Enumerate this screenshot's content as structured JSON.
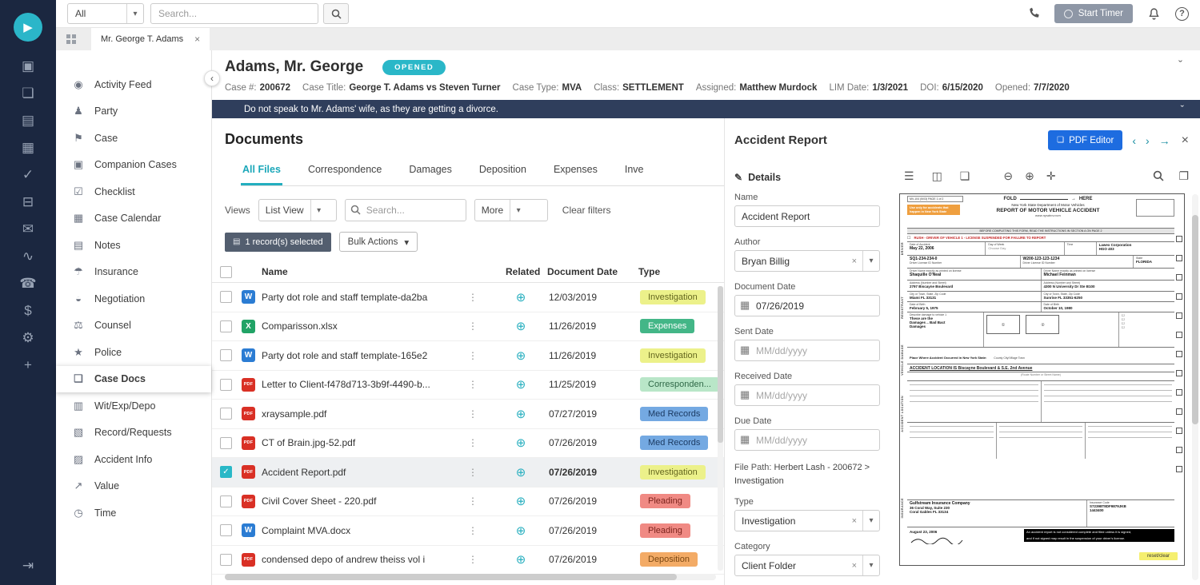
{
  "colors": {
    "accent_teal": "#2ab7c8",
    "accent_blue": "#1d6ce0",
    "rail_bg": "#1b2740",
    "alert_bg": "#2f3e5c"
  },
  "glyphs": {
    "logo": "▶",
    "caret": "▾",
    "kebab": "⋮",
    "related": "⊕",
    "check": "✓",
    "close": "×",
    "chevron_left": "‹",
    "chevron_right": "›",
    "chevron_down": "ˇ",
    "arrow_right": "→",
    "pencil": "✎",
    "doc": "❏",
    "calendar": "▦",
    "question": "?",
    "doc_small": "▤",
    "checkbox": "☐",
    "circle1": "①",
    "circle2": "②"
  },
  "file_icon_letters": {
    "word": "W",
    "excel": "X",
    "pdf": "PDF"
  },
  "topbar": {
    "scope_select": "All",
    "search_placeholder": "Search...",
    "start_timer_label": "Start Timer"
  },
  "tabstrip": {
    "case_tab_label": "Mr. George T. Adams"
  },
  "rail": {
    "icons": [
      {
        "name": "briefcase",
        "glyph": "▣"
      },
      {
        "name": "folder",
        "glyph": "❏"
      },
      {
        "name": "contact-card",
        "glyph": "▤"
      },
      {
        "name": "calendar",
        "glyph": "▦"
      },
      {
        "name": "check-circle",
        "glyph": "✓"
      },
      {
        "name": "inbox",
        "glyph": "⊟"
      },
      {
        "name": "chat",
        "glyph": "✉"
      },
      {
        "name": "activity",
        "glyph": "∿"
      },
      {
        "name": "phone-call",
        "glyph": "☎"
      },
      {
        "name": "dollar",
        "glyph": "$"
      },
      {
        "name": "settings",
        "glyph": "⚙"
      },
      {
        "name": "add",
        "glyph": "+"
      }
    ],
    "logout_glyph": "⇥"
  },
  "sidebar": {
    "items": [
      {
        "label": "Activity Feed",
        "icon": "activity-feed-icon",
        "glyph": "◉",
        "selected": false
      },
      {
        "label": "Party",
        "icon": "party-icon",
        "glyph": "♟",
        "selected": false
      },
      {
        "label": "Case",
        "icon": "case-icon",
        "glyph": "⚑",
        "selected": false
      },
      {
        "label": "Companion Cases",
        "icon": "companion-cases-icon",
        "glyph": "▣",
        "selected": false
      },
      {
        "label": "Checklist",
        "icon": "checklist-icon",
        "glyph": "☑",
        "selected": false
      },
      {
        "label": "Case Calendar",
        "icon": "case-calendar-icon",
        "glyph": "▦",
        "selected": false
      },
      {
        "label": "Notes",
        "icon": "notes-icon",
        "glyph": "▤",
        "selected": false
      },
      {
        "label": "Insurance",
        "icon": "insurance-icon",
        "glyph": "☂",
        "selected": false
      },
      {
        "label": "Negotiation",
        "icon": "negotiation-icon",
        "glyph": "◒",
        "selected": false
      },
      {
        "label": "Counsel",
        "icon": "counsel-icon",
        "glyph": "⚖",
        "selected": false
      },
      {
        "label": "Police",
        "icon": "police-icon",
        "glyph": "★",
        "selected": false
      },
      {
        "label": "Case Docs",
        "icon": "case-docs-icon",
        "glyph": "❏",
        "selected": true
      },
      {
        "label": "Wit/Exp/Depo",
        "icon": "wit-exp-depo-icon",
        "glyph": "▥",
        "selected": false
      },
      {
        "label": "Record/Requests",
        "icon": "record-requests-icon",
        "glyph": "▧",
        "selected": false
      },
      {
        "label": "Accident Info",
        "icon": "accident-info-icon",
        "glyph": "▨",
        "selected": false
      },
      {
        "label": "Value",
        "icon": "value-icon",
        "glyph": "↗",
        "selected": false
      },
      {
        "label": "Time",
        "icon": "time-icon",
        "glyph": "◷",
        "selected": false
      }
    ]
  },
  "case_header": {
    "title": "Adams, Mr. George",
    "status": "OPENED",
    "meta": [
      {
        "label": "Case #:",
        "value": "200672"
      },
      {
        "label": "Case Title:",
        "value": "George T. Adams vs Steven Turner"
      },
      {
        "label": "Case Type:",
        "value": "MVA"
      },
      {
        "label": "Class:",
        "value": "SETTLEMENT"
      },
      {
        "label": "Assigned:",
        "value": "Matthew Murdock"
      },
      {
        "label": "LIM Date:",
        "value": "1/3/2021"
      },
      {
        "label": "DOI:",
        "value": "6/15/2020"
      },
      {
        "label": "Opened:",
        "value": "7/7/2020"
      }
    ],
    "alert_text": "Do not speak to Mr. Adams' wife, as they are getting a divorce."
  },
  "documents": {
    "title": "Documents",
    "tabs": [
      {
        "label": "All Files",
        "active": true
      },
      {
        "label": "Correspondence",
        "active": false
      },
      {
        "label": "Damages",
        "active": false
      },
      {
        "label": "Deposition",
        "active": false
      },
      {
        "label": "Expenses",
        "active": false
      },
      {
        "label": "Inve",
        "active": false
      }
    ],
    "views_label": "Views",
    "view_value": "List View",
    "search_placeholder": "Search...",
    "more_label": "More",
    "clear_filters_label": "Clear filters",
    "selected_summary": "1 record(s) selected",
    "bulk_actions_label": "Bulk Actions",
    "columns": {
      "name": "Name",
      "related": "Related",
      "date": "Document Date",
      "type": "Type"
    },
    "rows": [
      {
        "icon": "word",
        "name": "Party dot role and staff template-da2ba",
        "date": "12/03/2019",
        "type": "Investigation",
        "type_key": "investigation",
        "selected": false
      },
      {
        "icon": "excel",
        "name": "Comparisson.xlsx",
        "date": "11/26/2019",
        "type": "Expenses",
        "type_key": "expenses",
        "selected": false
      },
      {
        "icon": "word",
        "name": "Party dot role and staff template-165e2",
        "date": "11/26/2019",
        "type": "Investigation",
        "type_key": "investigation",
        "selected": false
      },
      {
        "icon": "pdf",
        "name": "Letter to Client-f478d713-3b9f-4490-b...",
        "date": "11/25/2019",
        "type": "Corresponden...",
        "type_key": "correspondence",
        "selected": false
      },
      {
        "icon": "pdf",
        "name": "xraysample.pdf",
        "date": "07/27/2019",
        "type": "Med Records",
        "type_key": "med-records",
        "selected": false
      },
      {
        "icon": "pdf",
        "name": "CT of Brain.jpg-52.pdf",
        "date": "07/26/2019",
        "type": "Med Records",
        "type_key": "med-records",
        "selected": false
      },
      {
        "icon": "pdf",
        "name": "Accident Report.pdf",
        "date": "07/26/2019",
        "type": "Investigation",
        "type_key": "investigation",
        "selected": true
      },
      {
        "icon": "pdf",
        "name": "Civil Cover Sheet - 220.pdf",
        "date": "07/26/2019",
        "type": "Pleading",
        "type_key": "pleading",
        "selected": false
      },
      {
        "icon": "word",
        "name": "Complaint MVA.docx",
        "date": "07/26/2019",
        "type": "Pleading",
        "type_key": "pleading",
        "selected": false
      },
      {
        "icon": "pdf",
        "name": "condensed depo of andrew theiss vol i",
        "date": "07/26/2019",
        "type": "Deposition",
        "type_key": "deposition",
        "selected": false
      }
    ]
  },
  "badge_colors": {
    "investigation": {
      "bg": "#ecf18a",
      "fg": "#65671f"
    },
    "expenses": {
      "bg": "#43b687",
      "fg": "#ffffff"
    },
    "correspondence": {
      "bg": "#b9e6c8",
      "fg": "#2f6847"
    },
    "med-records": {
      "bg": "#74a9e2",
      "fg": "#1c3b63"
    },
    "pleading": {
      "bg": "#f08a84",
      "fg": "#7c241d"
    },
    "deposition": {
      "bg": "#f3ab66",
      "fg": "#7a4712"
    }
  },
  "detail_panel": {
    "title": "Accident Report",
    "pdf_editor_label": "PDF Editor",
    "details_header": "Details",
    "name_label": "Name",
    "name_value": "Accident Report",
    "author_label": "Author",
    "author_value": "Bryan Billig",
    "document_date_label": "Document Date",
    "document_date_value": "07/26/2019",
    "sent_date_label": "Sent Date",
    "sent_date_placeholder": "MM/dd/yyyy",
    "received_date_label": "Received Date",
    "received_date_placeholder": "MM/dd/yyyy",
    "due_date_label": "Due Date",
    "due_date_placeholder": "MM/dd/yyyy",
    "file_path_label": "File Path:",
    "file_path_value": "Herbert Lash - 200672 > Investigation",
    "type_label": "Type",
    "type_value": "Investigation",
    "category_label": "Category",
    "category_value": "Client Folder"
  },
  "pdf_viewer": {
    "tb": {
      "menu": "☰",
      "thumbs": "◫",
      "doc": "❏",
      "zoom_out": "⊖",
      "zoom_in": "⊕",
      "pan": "✛",
      "pages": "❐"
    }
  },
  "pdf_form": {
    "page_label": "MV-104 (5/03)  PAGE 1 of 2",
    "fold_label": "FOLD",
    "here_label": "HERE",
    "dept": "New York State Department of Motor Vehicles",
    "title": "REPORT OF MOTOR VEHICLE ACCIDENT",
    "website": "www.nysdmv.com",
    "notice": "Use only for accidents that happen in New York State",
    "instructions": "BEFORE COMPLETING THIS FORM, READ THE INSTRUCTIONS IN SECTION A ON PAGE 2",
    "rush_line": "RUSH - DRIVER OF VEHICLE 1 - LICENSE SUSPENDED FOR FAILURE TO REPORT",
    "date_of_accident_label": "Date of Accident",
    "accident_date": "May 22, 2006",
    "day_label": "Day of Week",
    "day_value": "Choose Day",
    "time_label": "Time",
    "company": "Lawex Corporation",
    "plate_short": "HGO 403",
    "license_label": "Driver License ID Number",
    "license1": "SQ1-234-234-0",
    "license2": "W200-123-123-1234",
    "state_label": "State",
    "state2": "FLORIDA",
    "name_small_label": "Driver Name exactly as printed on license",
    "driver1_name": "Shaquille O'Neal",
    "driver2_name": "Michael Feinman",
    "address_small_label": "Address (Number and Street)",
    "driver1_address": "2797 Biscayne Boulevard",
    "driver2_address": "4300 N University Dr Ste B100",
    "city_small_label": "City or Town, State, Zip Code",
    "driver1_city": "Miami   FL   33131",
    "driver2_city": "Sunrise   FL   33351-6250",
    "dob_small_label": "Date of Birth",
    "driver1_dob": "February 5, 1975",
    "driver2_dob": "October 10, 1980",
    "damage_header": "Describe damage to vehicle 1",
    "damage_note_1": "These are the",
    "damage_note_2": "Damages .. Bad Bact",
    "damage_note_3": "Damages",
    "location_header": "Place Where Accident Occurred in New York State:",
    "location_fields": "County          City/Village          Town",
    "location_value": "ACCIDENT LOCATION IS Biscayne Boulevard & S.E. 2nd Avenue",
    "route_hint": "(Route Number or Street Name)",
    "insurer": "Gulfstream Insurance Company",
    "insurer_address": "36 Coral Way, Suite 230",
    "insurer_city": "Coral Gables  FL  33134",
    "insurance_code_label": "Insurance Code",
    "policy_code": "S72398T8DF9879JKB",
    "policy_number": "1443400",
    "sign_note_1": "An accident report is not considered complete and filed unless it is signed,",
    "sign_note_2": "and if not signed may result in the suspension of your driver's license.",
    "signed_date": "August 23, 2006",
    "reset_label": "reset/clear",
    "side_labels": [
      "DRIVER",
      "REGISTRANT",
      "VEHICLE DAMAGE",
      "ACCIDENT LOCATION",
      "INSURANCE"
    ]
  }
}
